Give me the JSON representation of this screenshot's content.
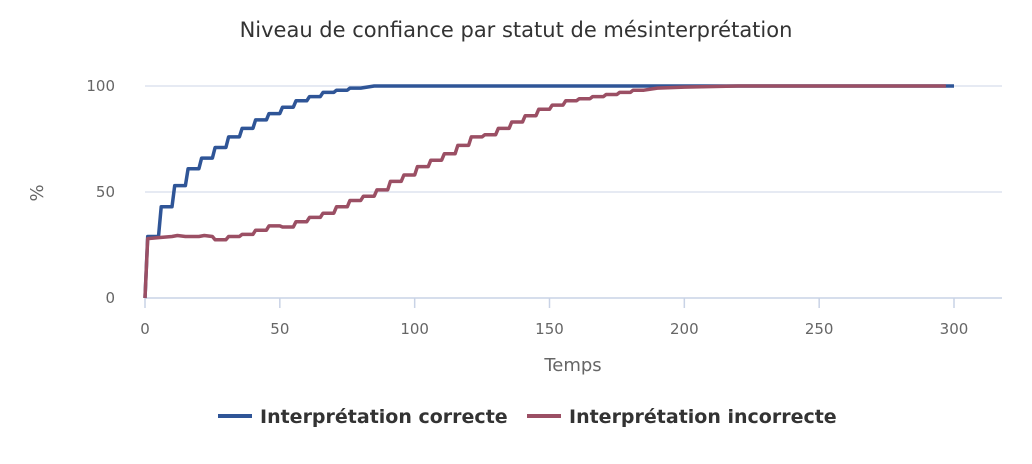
{
  "chart_data": {
    "type": "line",
    "title": "Niveau de confiance par statut de mésinterprétation",
    "xlabel": "Temps",
    "ylabel": "%",
    "xlim": [
      0,
      315
    ],
    "ylim": [
      0,
      100
    ],
    "x_ticks": [
      0,
      50,
      100,
      150,
      200,
      250,
      300
    ],
    "y_ticks": [
      0,
      50,
      100
    ],
    "grid": true,
    "legend_position": "bottom",
    "series": [
      {
        "name": "Interprétation correcte",
        "color": "#2f5597",
        "points": [
          [
            0,
            0
          ],
          [
            1,
            29
          ],
          [
            5,
            29
          ],
          [
            6,
            43
          ],
          [
            10,
            43
          ],
          [
            11,
            53
          ],
          [
            15,
            53
          ],
          [
            16,
            61
          ],
          [
            20,
            61
          ],
          [
            21,
            66
          ],
          [
            25,
            66
          ],
          [
            26,
            71
          ],
          [
            30,
            71
          ],
          [
            31,
            76
          ],
          [
            35,
            76
          ],
          [
            36,
            80
          ],
          [
            40,
            80
          ],
          [
            41,
            84
          ],
          [
            45,
            84
          ],
          [
            46,
            87
          ],
          [
            50,
            87
          ],
          [
            51,
            90
          ],
          [
            55,
            90
          ],
          [
            56,
            93
          ],
          [
            60,
            93
          ],
          [
            61,
            95
          ],
          [
            65,
            95
          ],
          [
            66,
            97
          ],
          [
            70,
            97
          ],
          [
            71,
            98
          ],
          [
            75,
            98
          ],
          [
            76,
            99
          ],
          [
            80,
            99
          ],
          [
            85,
            100
          ],
          [
            300,
            100
          ]
        ]
      },
      {
        "name": "Interprétation incorrecte",
        "color": "#9b4f64",
        "points": [
          [
            0,
            0
          ],
          [
            1,
            28
          ],
          [
            5,
            28.5
          ],
          [
            10,
            29
          ],
          [
            12,
            29.5
          ],
          [
            15,
            29
          ],
          [
            20,
            29
          ],
          [
            22,
            29.5
          ],
          [
            25,
            29
          ],
          [
            26,
            27.5
          ],
          [
            30,
            27.5
          ],
          [
            31,
            29
          ],
          [
            35,
            29
          ],
          [
            36,
            30
          ],
          [
            40,
            30
          ],
          [
            41,
            32
          ],
          [
            45,
            32
          ],
          [
            46,
            34
          ],
          [
            50,
            34
          ],
          [
            51,
            33.5
          ],
          [
            55,
            33.5
          ],
          [
            56,
            36
          ],
          [
            60,
            36
          ],
          [
            61,
            38
          ],
          [
            65,
            38
          ],
          [
            66,
            40
          ],
          [
            70,
            40
          ],
          [
            71,
            43
          ],
          [
            75,
            43
          ],
          [
            76,
            46
          ],
          [
            80,
            46
          ],
          [
            81,
            48
          ],
          [
            85,
            48
          ],
          [
            86,
            51
          ],
          [
            90,
            51
          ],
          [
            91,
            55
          ],
          [
            95,
            55
          ],
          [
            96,
            58
          ],
          [
            100,
            58
          ],
          [
            101,
            62
          ],
          [
            105,
            62
          ],
          [
            106,
            65
          ],
          [
            110,
            65
          ],
          [
            111,
            68
          ],
          [
            115,
            68
          ],
          [
            116,
            72
          ],
          [
            120,
            72
          ],
          [
            121,
            76
          ],
          [
            125,
            76
          ],
          [
            126,
            77
          ],
          [
            130,
            77
          ],
          [
            131,
            80
          ],
          [
            135,
            80
          ],
          [
            136,
            83
          ],
          [
            140,
            83
          ],
          [
            141,
            86
          ],
          [
            145,
            86
          ],
          [
            146,
            89
          ],
          [
            150,
            89
          ],
          [
            151,
            91
          ],
          [
            155,
            91
          ],
          [
            156,
            93
          ],
          [
            160,
            93
          ],
          [
            161,
            94
          ],
          [
            165,
            94
          ],
          [
            166,
            95
          ],
          [
            170,
            95
          ],
          [
            171,
            96
          ],
          [
            175,
            96
          ],
          [
            176,
            97
          ],
          [
            180,
            97
          ],
          [
            181,
            98
          ],
          [
            185,
            98
          ],
          [
            190,
            99
          ],
          [
            200,
            99.5
          ],
          [
            220,
            100
          ],
          [
            297,
            100
          ]
        ]
      }
    ]
  }
}
